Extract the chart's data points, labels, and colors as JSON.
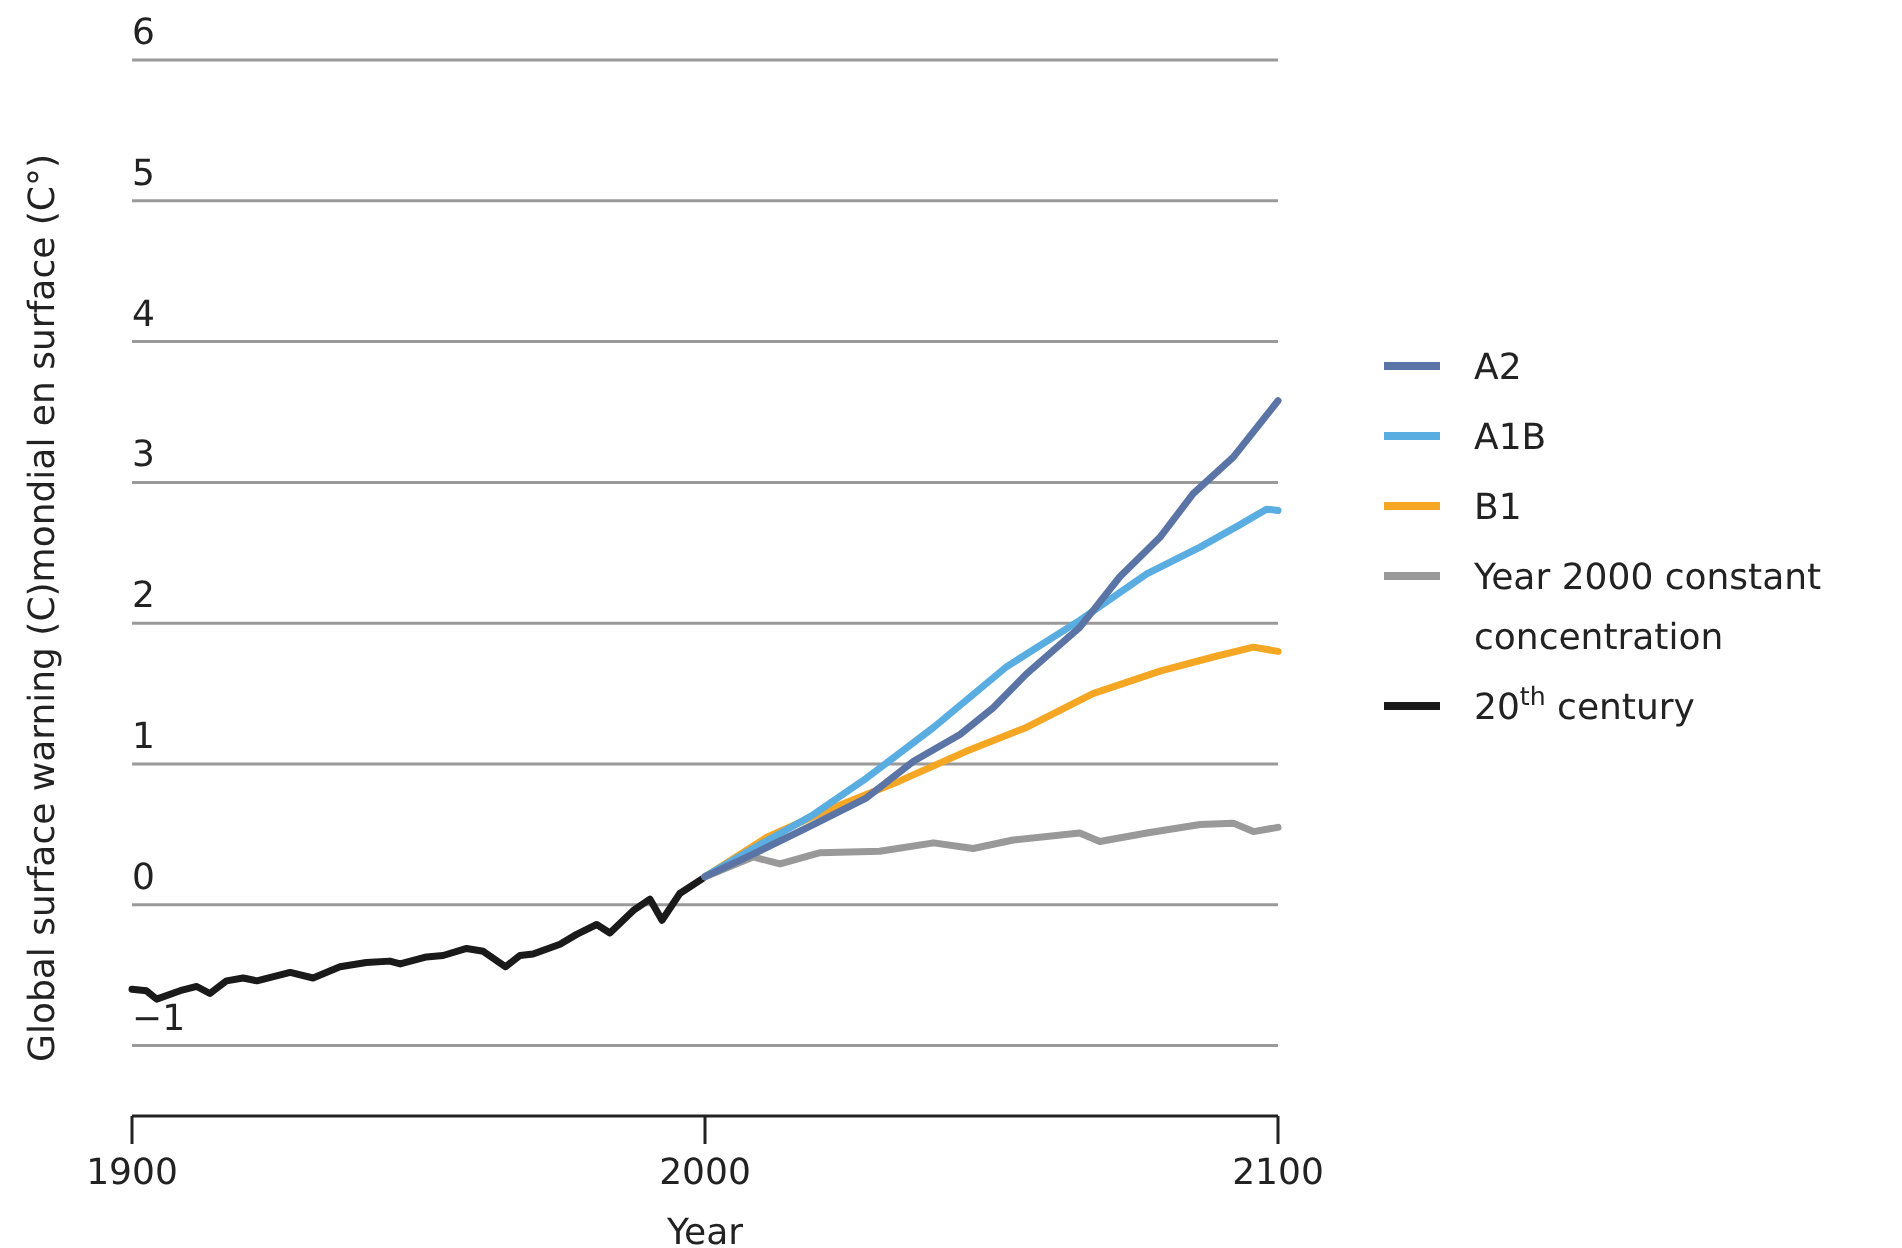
{
  "chart_data": {
    "type": "line",
    "xlabel": "Year",
    "ylabel": "Global surface warning (C)mondial en surface (C°)",
    "xlim": [
      1900,
      2100
    ],
    "xticks": [
      1900,
      2000,
      2100
    ],
    "ylim": [
      -1.5,
      6
    ],
    "yticks": [
      {
        "value": -1,
        "label": "−1"
      },
      0,
      1,
      2,
      3,
      4,
      5,
      6
    ],
    "grid": "y",
    "legend": "right",
    "line_style": "solid",
    "marker": "none",
    "series": [
      {
        "name": "A2",
        "color": "#5a74a6",
        "x": [
          2000,
          2008.4,
          2018.9,
          2028.2,
          2036.4,
          2044.5,
          2050.3,
          2056.1,
          2065.4,
          2072.4,
          2079.4,
          2085.2,
          2092.2,
          2100
        ],
        "values": [
          0.2,
          0.36,
          0.57,
          0.76,
          1.02,
          1.21,
          1.4,
          1.64,
          1.97,
          2.33,
          2.61,
          2.92,
          3.18,
          3.58
        ]
      },
      {
        "name": "A1B",
        "color": "#59ade0",
        "x": [
          2000,
          2008.4,
          2018.9,
          2028.2,
          2039.9,
          2052.6,
          2065.4,
          2077.1,
          2086.4,
          2093.4,
          2098,
          2100
        ],
        "values": [
          0.2,
          0.4,
          0.64,
          0.9,
          1.26,
          1.69,
          2.02,
          2.35,
          2.54,
          2.7,
          2.81,
          2.8
        ]
      },
      {
        "name": "B1",
        "color": "#f5a623",
        "x": [
          2000,
          2010.8,
          2022.4,
          2034,
          2045.6,
          2056.1,
          2067.7,
          2079.4,
          2088.7,
          2095.7,
          2100
        ],
        "values": [
          0.2,
          0.48,
          0.69,
          0.88,
          1.09,
          1.26,
          1.5,
          1.66,
          1.76,
          1.83,
          1.8
        ]
      },
      {
        "name": "Year 2000 constant concentration",
        "color": "#999999",
        "x": [
          2000,
          2008.4,
          2013.1,
          2020.1,
          2030.5,
          2039.9,
          2046.8,
          2053.8,
          2065.4,
          2068.9,
          2077.1,
          2086.4,
          2092.2,
          2095.7,
          2100
        ],
        "values": [
          0.2,
          0.34,
          0.29,
          0.37,
          0.38,
          0.44,
          0.4,
          0.46,
          0.51,
          0.45,
          0.51,
          0.57,
          0.58,
          0.52,
          0.55
        ]
      },
      {
        "name": "20$^{th}$ century",
        "color": "#1a1a1a",
        "x": [
          1900,
          1902.5,
          1904.3,
          1908.4,
          1911.3,
          1913.6,
          1916.5,
          1919.4,
          1921.8,
          1927.6,
          1931.6,
          1936.3,
          1940.9,
          1945,
          1946.8,
          1951.4,
          1954.3,
          1958.4,
          1961.3,
          1965.2,
          1967.7,
          1970,
          1974.7,
          1977.6,
          1981.1,
          1983.4,
          1987.5,
          1990.4,
          1992.5,
          1995.6,
          1999.7
        ],
        "values": [
          -0.6,
          -0.61,
          -0.67,
          -0.61,
          -0.58,
          -0.63,
          -0.54,
          -0.52,
          -0.54,
          -0.48,
          -0.52,
          -0.44,
          -0.41,
          -0.4,
          -0.42,
          -0.37,
          -0.36,
          -0.31,
          -0.33,
          -0.44,
          -0.36,
          -0.35,
          -0.28,
          -0.21,
          -0.14,
          -0.2,
          -0.04,
          0.04,
          -0.11,
          0.08,
          0.19
        ]
      }
    ]
  }
}
